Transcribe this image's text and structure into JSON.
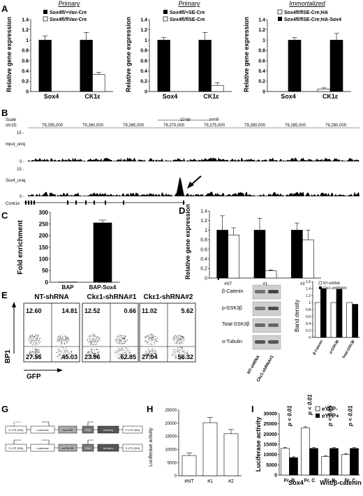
{
  "panelA": {
    "letter": "A",
    "ylabel": "Relative gene expression",
    "charts": [
      {
        "title": "Primary",
        "legend": [
          "Sox4fl/+Vav-Cre",
          "Sox4fl/flVav-Cre"
        ]
      },
      {
        "title": "Primary",
        "legend": [
          "Sox4fl/+SE-Cre",
          "Sox4fl/flSE-Cre"
        ]
      },
      {
        "title": "Immortalized",
        "legend": [
          "Sox4fl/flSE-Cre;HA",
          "Sox4fl/flSE-Cre;HA-Sox4"
        ]
      }
    ]
  },
  "panelB": {
    "letter": "B",
    "scale_label": "Scale",
    "scale_bar": "10 kb",
    "genome": "mm9",
    "chr": "chr15:",
    "coords": [
      "79,255,000",
      "79,260,000",
      "79,265,000",
      "79,270,000",
      "79,275,000",
      "79,280,000",
      "79,285,000",
      "79,290,000"
    ],
    "tracks": [
      {
        "name": "Input_uniq",
        "max": "15 -",
        "min": "0 -"
      },
      {
        "name": "Sox4_uniq",
        "max": "15 -",
        "min": "0 -"
      }
    ],
    "gene": "Csnk1e"
  },
  "panelC": {
    "letter": "C"
  },
  "panelD": {
    "letter": "D"
  },
  "panelE": {
    "letter": "E",
    "titles": [
      "NT-shRNA",
      "Ckε1-shRNA#1",
      "Ckε1-shRNA#2"
    ],
    "quadrants": [
      [
        "12.60",
        "14.81",
        "27.56",
        "45.03"
      ],
      [
        "12.52",
        "0.66",
        "23.96",
        "62.85"
      ],
      [
        "11.02",
        "5.62",
        "27.04",
        "56.32"
      ]
    ],
    "ylabel": "BP1",
    "xlabel": "GFP"
  },
  "panelF": {
    "letter": "F",
    "blot_labels": [
      "β-Catenin",
      "p-GSK3β",
      "Total GSK3β",
      "α-Tubulin"
    ],
    "lane_labels": [
      "NT-shRNA",
      "Ckε1-shRNA#1"
    ]
  },
  "panelG": {
    "letter": "G",
    "constructs": [
      [
        "5'-LTR (SIN)",
        "Luciferase",
        "Sox4-RE",
        "PGK",
        "mCherry",
        "3'-LTR (SIN)"
      ],
      [
        "5'-LTR (SIN)",
        "Luciferase",
        "Lef/Tcf-RE",
        "PGK",
        "mCherry",
        "3'-LTR (SIN)"
      ]
    ]
  },
  "panelH": {
    "letter": "H"
  },
  "panelI": {
    "letter": "I",
    "pvalues": [
      "p < 0.01",
      "p < 0.01",
      "p < 0.05",
      "p < 0.01"
    ]
  },
  "chart_data": [
    {
      "id": "A1",
      "type": "bar",
      "categories": [
        "Sox4",
        "CK1ε"
      ],
      "series": [
        {
          "name": "Sox4fl/+Vav-Cre",
          "values": [
            1.0,
            1.0
          ],
          "err": [
            0.08,
            0.15
          ]
        },
        {
          "name": "Sox4fl/flVav-Cre",
          "values": [
            0.0,
            0.33
          ],
          "err": [
            0.0,
            0.04
          ]
        }
      ],
      "ylim": [
        0,
        1.4
      ],
      "yticks": [
        "0",
        "0.2",
        "0.4",
        "0.6",
        "0.8",
        "1",
        "1.2",
        "1.4"
      ]
    },
    {
      "id": "A2",
      "type": "bar",
      "categories": [
        "Sox4",
        "CK1ε"
      ],
      "series": [
        {
          "name": "Sox4fl/+SE-Cre",
          "values": [
            1.0,
            1.0
          ],
          "err": [
            0.05,
            0.15
          ]
        },
        {
          "name": "Sox4fl/flSE-Cre",
          "values": [
            0.0,
            0.12
          ],
          "err": [
            0.0,
            0.05
          ]
        }
      ],
      "ylim": [
        0,
        1.4
      ],
      "yticks": [
        "0",
        "0.2",
        "0.4",
        "0.6",
        "0.8",
        "1",
        "1.2",
        "1.4"
      ]
    },
    {
      "id": "A3",
      "type": "bar",
      "categories": [
        "Sox4",
        "CK1ε"
      ],
      "series": [
        {
          "name": "Sox4fl/flSE-Cre;HA",
          "values": [
            0.0,
            0.05
          ],
          "err": [
            0.0,
            0.02
          ]
        },
        {
          "name": "Sox4fl/flSE-Cre;HA-Sox4",
          "values": [
            1.0,
            1.0
          ],
          "err": [
            0.05,
            0.13
          ]
        }
      ],
      "ylim": [
        0,
        1.4
      ],
      "yticks": [
        "0",
        "0.2",
        "0.4",
        "0.6",
        "0.8",
        "1",
        "1.2",
        "1.4"
      ]
    },
    {
      "id": "C",
      "type": "bar",
      "categories": [
        "BAP",
        "BAP-Sox4"
      ],
      "values": [
        1,
        255
      ],
      "err": [
        0,
        12
      ],
      "ylabel": "Fold enrichment",
      "ylim": [
        0,
        300
      ],
      "yticks": [
        "0",
        "50",
        "100",
        "150",
        "200",
        "250",
        "300"
      ]
    },
    {
      "id": "D",
      "type": "bar",
      "categories": [
        "#NT",
        "#1",
        "#2"
      ],
      "series": [
        {
          "values": [
            1.0,
            1.0,
            1.0
          ],
          "err": [
            0.3,
            0.25,
            0.15
          ]
        },
        {
          "values": [
            0.9,
            0.15,
            0.8
          ],
          "err": [
            0.15,
            0.02,
            0.2
          ]
        }
      ],
      "ylabel": "Relative gene expression",
      "ylim": [
        0,
        1.4
      ],
      "yticks": [
        "0",
        "0.2",
        "0.4",
        "0.6",
        "0.8",
        "1",
        "1.2",
        "1.4"
      ]
    },
    {
      "id": "F",
      "type": "bar",
      "categories": [
        "β-Catenin",
        "p-GSK3β",
        "Total GSK3β"
      ],
      "series": [
        {
          "name": "NT-shRNA",
          "values": [
            1.0,
            1.0,
            1.0
          ]
        },
        {
          "name": "Ckε1-shRNA#1",
          "values": [
            1.4,
            1.38,
            0.95
          ]
        }
      ],
      "ylabel": "Band density",
      "ylim": [
        0,
        1.6
      ],
      "yticks": [
        "0",
        "0.2",
        "0.4",
        "0.6",
        "0.8",
        "1",
        "1.2",
        "1.4",
        "1.6"
      ]
    },
    {
      "id": "H",
      "type": "bar",
      "categories": [
        "#NT",
        "#1",
        "#2"
      ],
      "values": [
        7700,
        20200,
        16000
      ],
      "err": [
        900,
        2000,
        1600
      ],
      "ylabel": "Luciferase activity",
      "ylim": [
        0,
        25000
      ],
      "yticks": [
        "0",
        "5000",
        "10000",
        "15000",
        "20000",
        "25000"
      ]
    },
    {
      "id": "I",
      "type": "bar",
      "categories": [
        "Fr. B",
        "Fr. C",
        "Fr. B",
        "Fr. C"
      ],
      "groups": [
        "Sox4",
        "Wnt/β-catenin"
      ],
      "series": [
        {
          "name": "eYFP-",
          "values": [
            13000,
            23000,
            9000,
            10000
          ],
          "err": [
            500,
            600,
            500,
            500
          ]
        },
        {
          "name": "eYFP+",
          "values": [
            8500,
            13000,
            13000,
            13000
          ],
          "err": [
            400,
            500,
            400,
            400
          ]
        }
      ],
      "ylabel": "Luciferase activity",
      "ylim": [
        0,
        30000
      ],
      "yticks": [
        "0",
        "5000",
        "10000",
        "15000",
        "20000",
        "25000",
        "30000"
      ]
    }
  ]
}
